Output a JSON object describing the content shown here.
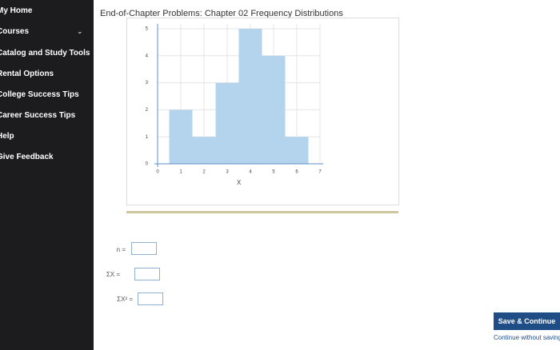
{
  "sidebar": {
    "items": [
      "My Home",
      "Courses",
      "Catalog and Study Tools",
      "Rental Options",
      "College Success Tips",
      "Career Success Tips",
      "Help",
      "Give Feedback"
    ]
  },
  "header": {
    "title": "End-of-Chapter Problems: Chapter 02 Frequency Distributions"
  },
  "chart_data": {
    "type": "histogram",
    "x_label": "X",
    "bins": [
      0.5,
      1.5,
      2.5,
      3.5,
      4.5,
      5.5,
      6.5
    ],
    "counts": [
      2,
      1,
      3,
      5,
      4,
      1
    ],
    "color": "#b4d4ee",
    "xlim": [
      0,
      7
    ],
    "xticks": [
      0,
      1,
      2,
      3,
      4,
      5,
      6,
      7
    ],
    "ylim": [
      0,
      5
    ],
    "yticks": [
      0,
      1,
      2,
      3,
      4,
      5
    ],
    "grid": true
  },
  "form": {
    "fields": [
      "n =",
      "ΣX =",
      "ΣX² ="
    ]
  },
  "actions": {
    "primary": "Save & Continue",
    "secondary": "Continue without saving"
  }
}
